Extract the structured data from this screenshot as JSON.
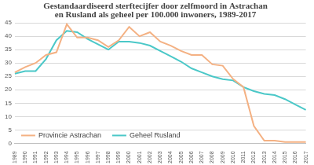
{
  "chart_data": {
    "type": "line",
    "title": [
      "Gestandaardiseerd sterftecijfer door zelfmoord in Astrachan",
      "en Rusland als geheel per 100.000 inwoners, 1989-2017"
    ],
    "categories": [
      "1989",
      "1990",
      "1991",
      "1992",
      "1993",
      "1994",
      "1995",
      "1996",
      "1997",
      "1998",
      "1999",
      "2000",
      "2001",
      "2002",
      "2003",
      "2004",
      "2005",
      "2006",
      "2007",
      "2008",
      "2009",
      "2010",
      "2011",
      "2012",
      "2013",
      "2014",
      "2015",
      "2016",
      "2017"
    ],
    "series": [
      {
        "name": "Provincie Astrachan",
        "color": "#f4b183",
        "values": [
          26.5,
          28.5,
          30,
          33,
          34,
          44.5,
          39.5,
          39.5,
          38.5,
          36,
          38.5,
          43.5,
          40,
          41.5,
          38,
          36.5,
          34.5,
          33,
          33,
          29.5,
          29,
          24,
          21,
          6.5,
          1,
          1,
          0.5,
          0.5,
          0.5
        ]
      },
      {
        "name": "Geheel Rusland",
        "color": "#4bc8c8",
        "values": [
          26,
          27,
          27,
          31.5,
          38.5,
          42,
          41.5,
          39,
          37,
          35,
          38,
          38,
          37.5,
          36.5,
          34.5,
          32.5,
          30.5,
          28,
          26.5,
          25,
          24,
          23.5,
          21,
          19.5,
          18.5,
          18,
          16.5,
          14.5,
          12.5
        ]
      }
    ],
    "ylim": [
      0,
      45
    ],
    "yticks": [
      0,
      5,
      10,
      15,
      20,
      25,
      30,
      35,
      40,
      45
    ],
    "grid": true,
    "legend": "lower left"
  }
}
